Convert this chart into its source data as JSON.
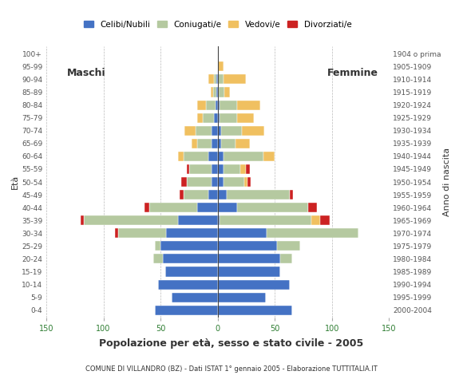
{
  "title": "Popolazione per età, sesso e stato civile - 2005",
  "subtitle": "COMUNE DI VILLANDRO (BZ) - Dati ISTAT 1° gennaio 2005 - Elaborazione TUTTITALIA.IT",
  "ylabel_left": "Età",
  "ylabel_right": "Anno di nascita",
  "age_groups": [
    "0-4",
    "5-9",
    "10-14",
    "15-19",
    "20-24",
    "25-29",
    "30-34",
    "35-39",
    "40-44",
    "45-49",
    "50-54",
    "55-59",
    "60-64",
    "65-69",
    "70-74",
    "75-79",
    "80-84",
    "85-89",
    "90-94",
    "95-99",
    "100+"
  ],
  "birth_years": [
    "2000-2004",
    "1995-1999",
    "1990-1994",
    "1985-1989",
    "1980-1984",
    "1975-1979",
    "1970-1974",
    "1965-1969",
    "1960-1964",
    "1955-1959",
    "1950-1954",
    "1945-1949",
    "1940-1944",
    "1935-1939",
    "1930-1934",
    "1925-1929",
    "1920-1924",
    "1915-1919",
    "1910-1914",
    "1905-1909",
    "1904 o prima"
  ],
  "legend_labels": [
    "Celibi/Nubili",
    "Coniugati/e",
    "Vedovi/e",
    "Divorziati/e"
  ],
  "colors": {
    "celibi": "#4472c4",
    "coniugati": "#b5c9a0",
    "vedovi": "#f0c060",
    "divorziati": "#cc2222"
  },
  "males": {
    "celibi": [
      55,
      40,
      52,
      46,
      48,
      50,
      45,
      35,
      18,
      8,
      5,
      5,
      8,
      5,
      5,
      3,
      2,
      1,
      1,
      0,
      0
    ],
    "coniugati": [
      0,
      0,
      0,
      0,
      8,
      5,
      42,
      82,
      42,
      22,
      22,
      20,
      22,
      13,
      14,
      10,
      8,
      3,
      2,
      0,
      0
    ],
    "vedovi": [
      0,
      0,
      0,
      0,
      0,
      0,
      0,
      0,
      0,
      0,
      0,
      0,
      5,
      5,
      10,
      5,
      8,
      2,
      5,
      0,
      0
    ],
    "divorziati": [
      0,
      0,
      0,
      0,
      0,
      0,
      3,
      3,
      4,
      3,
      5,
      2,
      0,
      0,
      0,
      0,
      0,
      0,
      0,
      0,
      0
    ]
  },
  "females": {
    "nubili": [
      65,
      42,
      63,
      55,
      55,
      52,
      43,
      2,
      17,
      8,
      5,
      5,
      5,
      3,
      3,
      2,
      2,
      1,
      0,
      0,
      0
    ],
    "coniugati": [
      0,
      0,
      0,
      0,
      10,
      20,
      80,
      80,
      62,
      55,
      18,
      15,
      35,
      13,
      18,
      15,
      15,
      5,
      5,
      0,
      0
    ],
    "vedovi": [
      0,
      0,
      0,
      0,
      0,
      0,
      0,
      8,
      0,
      0,
      3,
      5,
      10,
      12,
      20,
      15,
      20,
      5,
      20,
      5,
      0
    ],
    "divorziati": [
      0,
      0,
      0,
      0,
      0,
      0,
      0,
      8,
      8,
      3,
      3,
      3,
      0,
      0,
      0,
      0,
      0,
      0,
      0,
      0,
      0
    ]
  },
  "xlim": 150,
  "grid_color": "#aaaaaa",
  "label_maschi": "Maschi",
  "label_femmine": "Femmine"
}
